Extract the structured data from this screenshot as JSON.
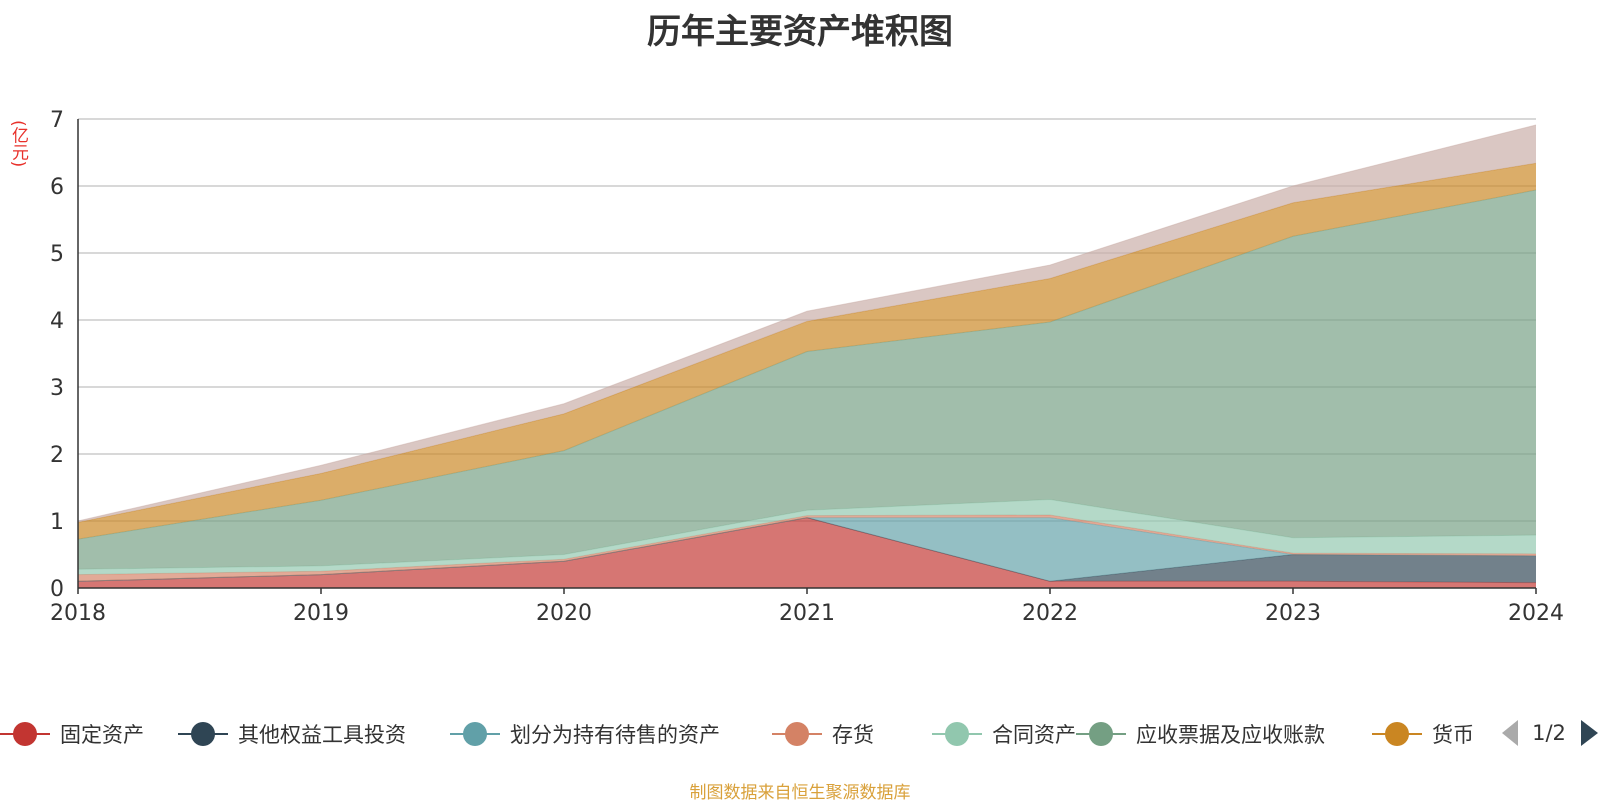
{
  "chart_data": {
    "type": "area",
    "stacked": true,
    "title": "历年主要资产堆积图",
    "unit": "(亿元)",
    "x": [
      "2018",
      "2019",
      "2020",
      "2021",
      "2022",
      "2023",
      "2024"
    ],
    "ylim": [
      0,
      7
    ],
    "yticks": [
      0,
      1,
      2,
      3,
      4,
      5,
      6,
      7
    ],
    "grid": true,
    "legend_position": "bottom",
    "legend_page": "1/2",
    "series": [
      {
        "name": "固定资产",
        "color": "#c23531",
        "values": [
          0.1,
          0.2,
          0.4,
          1.05,
          0.1,
          0.1,
          0.08
        ]
      },
      {
        "name": "其他权益工具投资",
        "color": "#2f4554",
        "values": [
          0,
          0,
          0,
          0,
          0,
          0.4,
          0.4
        ]
      },
      {
        "name": "划分为持有待售的资产",
        "color": "#61a0a8",
        "values": [
          0,
          0,
          0,
          0,
          0.95,
          0,
          0
        ]
      },
      {
        "name": "存货",
        "color": "#d48265",
        "values": [
          0.1,
          0.05,
          0.03,
          0.03,
          0.04,
          0.02,
          0.03
        ]
      },
      {
        "name": "合同资产",
        "color": "#91c7ae",
        "values": [
          0.08,
          0.08,
          0.07,
          0.08,
          0.23,
          0.23,
          0.28
        ]
      },
      {
        "name": "应收票据及应收账款",
        "color": "#749f83",
        "values": [
          0.45,
          0.98,
          1.55,
          2.37,
          2.65,
          4.5,
          5.15
        ]
      },
      {
        "name": "货币",
        "color": "#ca8622",
        "values": [
          0.25,
          0.4,
          0.55,
          0.45,
          0.65,
          0.5,
          0.4
        ]
      },
      {
        "values": [
          0.02,
          0.12,
          0.15,
          0.15,
          0.2,
          0.25,
          0.57
        ]
      }
    ]
  },
  "source_note": "制图数据来自恒生聚源数据库"
}
